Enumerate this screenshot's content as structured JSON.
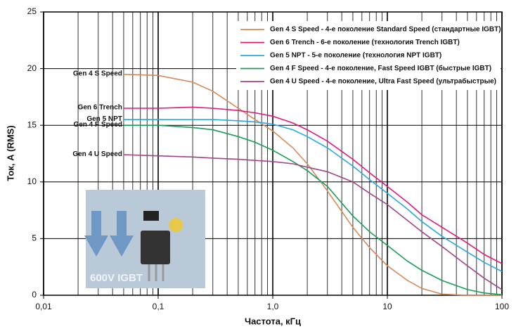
{
  "chart_data": {
    "type": "line",
    "xlabel": "Частота, кГц",
    "ylabel": "Ток, А (RMS)",
    "xscale": "log",
    "xlim": [
      0.01,
      100
    ],
    "ylim": [
      0,
      25
    ],
    "xticks": [
      {
        "value": 0.01,
        "label": "0,01"
      },
      {
        "value": 0.1,
        "label": "0,1"
      },
      {
        "value": 1,
        "label": "1,0"
      },
      10,
      100
    ],
    "yticks": [
      0,
      5,
      10,
      15,
      20,
      25
    ],
    "grid": true,
    "legend": "upper right",
    "x": [
      0.05,
      0.1,
      0.2,
      0.3,
      0.5,
      0.7,
      1,
      1.5,
      2,
      3,
      5,
      7,
      10,
      15,
      20,
      30,
      50,
      70,
      100
    ],
    "series": [
      {
        "name": "Gen 4 S Speed - 4-е поколение Standard Speed (стандартные IGBT)",
        "label": "Gen 4 S Speed",
        "color": "#d4895a",
        "values": [
          19.5,
          19.4,
          18.8,
          18,
          16.5,
          15.5,
          14.5,
          13,
          11.6,
          9.2,
          6,
          4.2,
          2.6,
          1.3,
          0.6,
          0.1,
          0,
          0,
          0
        ]
      },
      {
        "name": "Gen 6 Trench - 6-е поколение (технология Trench IGBT)",
        "label": "Gen 6 Trench",
        "color": "#e0197d",
        "values": [
          16.5,
          16.5,
          16.6,
          16.5,
          16.3,
          16.1,
          15.8,
          15.2,
          14.6,
          13.6,
          12,
          10.8,
          9.6,
          8.2,
          7.1,
          6,
          4.6,
          3.6,
          2.8
        ]
      },
      {
        "name": "Gen 5 NPT - 5-е поколение (технология NPT IGBT)",
        "label": "Gen 5 NPT",
        "color": "#29a8e0",
        "values": [
          15.5,
          15.5,
          15.5,
          15.5,
          15.4,
          15.3,
          15.1,
          14.6,
          14,
          13,
          11.4,
          10.2,
          9,
          7.6,
          6.5,
          5.2,
          3.8,
          2.9,
          2.1
        ]
      },
      {
        "name": "Gen 4 F Speed - 4-е поколение, Fast Speed IGBT (быстрые IGBT)",
        "label": "Gen 4 F Speed",
        "color": "#1a9e5a",
        "values": [
          15,
          15,
          14.8,
          14.6,
          14,
          13.5,
          12.8,
          11.8,
          11,
          9.6,
          7,
          5.6,
          4.4,
          3,
          2.2,
          1.3,
          0.5,
          0.2,
          0.05
        ]
      },
      {
        "name": "Gen 4 U Speed - 4-е поколение, Ultra Fast Speed (ультрабыстрые)",
        "label": "Gen 4 U Speed",
        "color": "#a0458a",
        "values": [
          12.4,
          12.3,
          12.2,
          12.1,
          12,
          11.9,
          11.8,
          11.6,
          11.3,
          10.9,
          10,
          9,
          8,
          6.6,
          5.6,
          4.3,
          2.6,
          1.5,
          0.5
        ]
      }
    ],
    "inset_text": "600V IGBT"
  }
}
